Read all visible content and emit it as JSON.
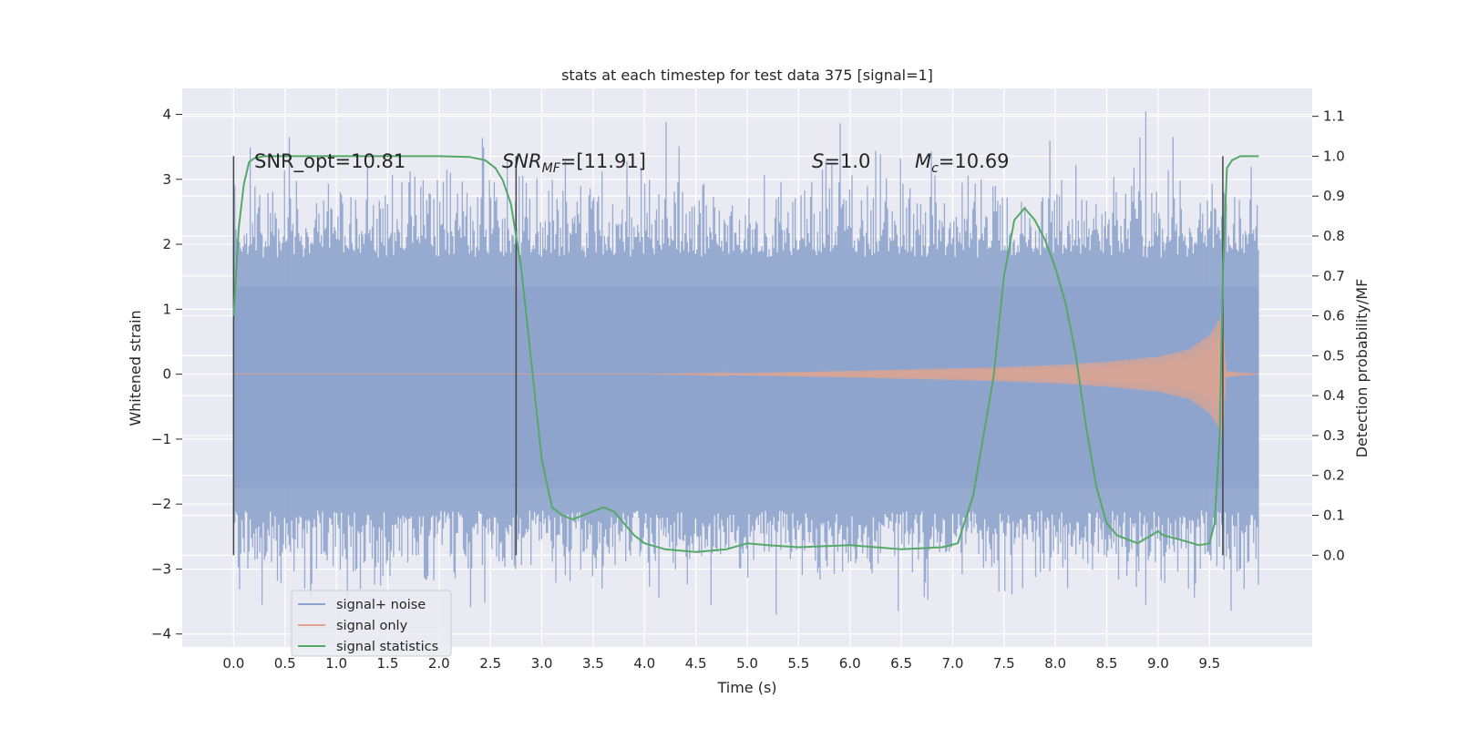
{
  "chart_data": {
    "type": "line",
    "title": "stats at each timestep for test data 375 [signal=1]",
    "xlabel": "Time (s)",
    "ylabel": "Whitened strain",
    "y2label": "Detection probability/MF",
    "xlim": [
      -0.5,
      10.5
    ],
    "ylim": [
      -4.2,
      4.4
    ],
    "y2lim": [
      -0.23,
      1.17
    ],
    "grid": true,
    "x_ticks": [
      "0.0",
      "0.5",
      "1.0",
      "1.5",
      "2.0",
      "2.5",
      "3.0",
      "3.5",
      "4.0",
      "4.5",
      "5.0",
      "5.5",
      "6.0",
      "6.5",
      "7.0",
      "7.5",
      "8.0",
      "8.5",
      "9.0",
      "9.5"
    ],
    "y_ticks": [
      "4",
      "3",
      "2",
      "1",
      "0",
      "−1",
      "−2",
      "−3",
      "−4"
    ],
    "y2_ticks": [
      "1.1",
      "1.0",
      "0.9",
      "0.8",
      "0.7",
      "0.6",
      "0.5",
      "0.4",
      "0.3",
      "0.2",
      "0.1",
      "0.0"
    ],
    "annotations": {
      "snr_opt": "SNR_opt=10.81",
      "snr_mf_main": "SNR",
      "snr_mf_sub": "MF",
      "snr_mf_value": "=[11.91]",
      "s_var": "S",
      "s_value": "=1.0",
      "mc_main": "M",
      "mc_sub": "c",
      "mc_value": "=10.69"
    },
    "vertical_markers_x": [
      0.0,
      2.75,
      9.63
    ],
    "legend": {
      "position": "lower-left",
      "entries": [
        "signal+ noise",
        "signal only",
        "signal statistics"
      ]
    },
    "series": [
      {
        "name": "signal+ noise",
        "axis": "left",
        "style": "noise band",
        "x_range": [
          0.0,
          9.98
        ],
        "dense_band": [
          -1.75,
          1.35
        ],
        "spike_extent": [
          -3.7,
          4.05
        ]
      },
      {
        "name": "signal only",
        "axis": "left",
        "style": "chirp",
        "envelope": {
          "x": [
            0.0,
            4.0,
            5.0,
            6.0,
            7.0,
            7.5,
            8.0,
            8.5,
            9.0,
            9.3,
            9.5,
            9.6,
            9.63,
            9.66,
            9.8,
            9.98
          ],
          "amplitude": [
            0.0,
            0.0,
            0.02,
            0.05,
            0.09,
            0.11,
            0.14,
            0.19,
            0.27,
            0.38,
            0.6,
            0.85,
            1.0,
            0.05,
            0.02,
            0.0
          ]
        }
      },
      {
        "name": "signal statistics",
        "axis": "right",
        "x": [
          0.0,
          0.05,
          0.1,
          0.15,
          0.2,
          0.3,
          0.5,
          1.0,
          2.0,
          2.3,
          2.45,
          2.55,
          2.62,
          2.7,
          2.8,
          2.9,
          3.0,
          3.1,
          3.2,
          3.3,
          3.4,
          3.5,
          3.6,
          3.7,
          3.8,
          3.9,
          4.0,
          4.2,
          4.5,
          4.8,
          5.0,
          5.2,
          5.5,
          6.0,
          6.5,
          6.9,
          7.05,
          7.2,
          7.3,
          7.4,
          7.5,
          7.6,
          7.7,
          7.8,
          7.9,
          8.0,
          8.1,
          8.2,
          8.3,
          8.4,
          8.5,
          8.6,
          8.7,
          8.8,
          9.0,
          9.05,
          9.2,
          9.4,
          9.5,
          9.55,
          9.6,
          9.63,
          9.67,
          9.72,
          9.8,
          9.9,
          9.98
        ],
        "values": [
          0.6,
          0.82,
          0.93,
          0.985,
          0.995,
          1.0,
          1.0,
          1.0,
          1.0,
          0.998,
          0.99,
          0.97,
          0.94,
          0.88,
          0.72,
          0.48,
          0.24,
          0.12,
          0.1,
          0.09,
          0.1,
          0.11,
          0.12,
          0.11,
          0.08,
          0.05,
          0.03,
          0.015,
          0.008,
          0.015,
          0.03,
          0.025,
          0.02,
          0.025,
          0.015,
          0.02,
          0.03,
          0.15,
          0.3,
          0.45,
          0.7,
          0.84,
          0.87,
          0.84,
          0.79,
          0.72,
          0.63,
          0.5,
          0.32,
          0.17,
          0.08,
          0.05,
          0.04,
          0.03,
          0.06,
          0.05,
          0.04,
          0.025,
          0.03,
          0.08,
          0.3,
          0.7,
          0.97,
          0.99,
          1.0,
          1.0,
          1.0
        ]
      }
    ]
  }
}
